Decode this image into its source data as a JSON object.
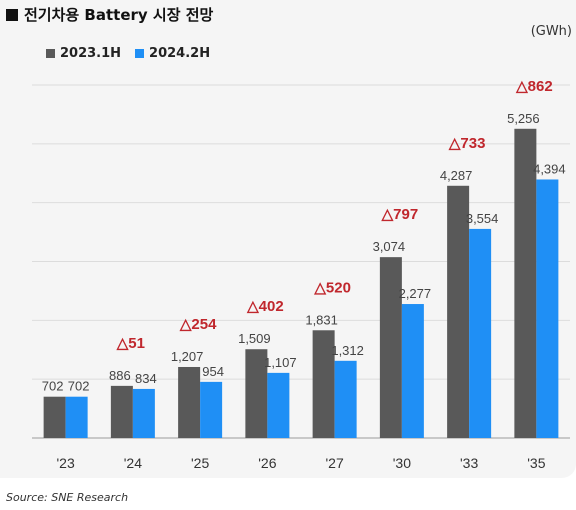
{
  "title": "전기차용 Battery 시장 전망",
  "unit_label": "(GWh)",
  "source": "Source: SNE Research",
  "chart_data": {
    "type": "bar",
    "categories": [
      "'23",
      "'24",
      "'25",
      "'26",
      "'27",
      "'30",
      "'33",
      "'35"
    ],
    "series": [
      {
        "name": "2023.1H",
        "color": "#595959",
        "values": [
          702,
          886,
          1207,
          1509,
          1831,
          3074,
          4287,
          5256
        ],
        "labels": [
          "702",
          "886",
          "1,207",
          "1,509",
          "1,831",
          "3,074",
          "4,287",
          "5,256"
        ]
      },
      {
        "name": "2024.2H",
        "color": "#1f8ff5",
        "values": [
          702,
          834,
          954,
          1107,
          1312,
          2277,
          3554,
          4394
        ],
        "labels": [
          "702",
          "834",
          "954",
          "1,107",
          "1,312",
          "2,277",
          "3,554",
          "4,394"
        ]
      }
    ],
    "diff_labels": [
      "",
      "△51",
      "△254",
      "△402",
      "△520",
      "△797",
      "△733",
      "△862"
    ],
    "diff_color": "#c0272d",
    "ylim": [
      0,
      6000
    ],
    "grid": true,
    "legend_position": "top-left"
  }
}
